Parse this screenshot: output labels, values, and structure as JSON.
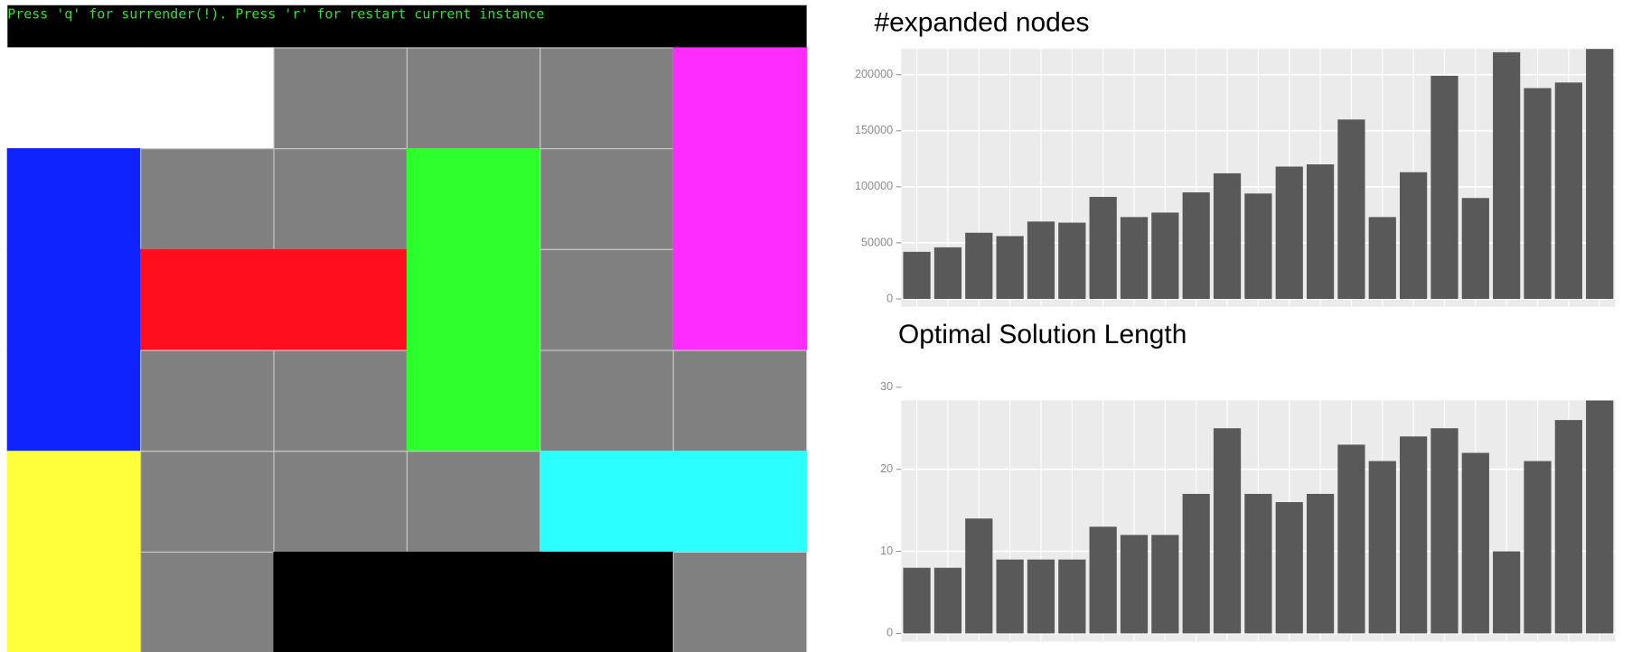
{
  "game": {
    "instruction": "Press 'q' for surrender(!). Press 'r' for restart current instance"
  },
  "chart_data": [
    {
      "type": "bar",
      "title": "#expanded nodes",
      "categories": [
        null,
        null,
        null,
        null,
        null,
        null,
        null,
        null,
        null,
        null,
        null,
        null,
        null,
        null,
        null,
        null,
        null,
        null,
        null,
        null,
        null,
        null,
        null
      ],
      "values": [
        42000,
        46000,
        59000,
        56000,
        69000,
        68000,
        91000,
        73000,
        77000,
        95000,
        112000,
        94000,
        118000,
        120000,
        160000,
        73000,
        113000,
        199000,
        90000,
        220000,
        188000,
        193000,
        223000
      ],
      "color": "#595959",
      "ylim": [
        -7000,
        223000
      ],
      "yticks": [
        0,
        50000,
        100000,
        150000,
        200000
      ],
      "grid": true
    },
    {
      "type": "bar",
      "title": "Optimal Solution Length",
      "categories": [
        null,
        null,
        null,
        null,
        null,
        null,
        null,
        null,
        null,
        null,
        null,
        null,
        null,
        null,
        null,
        null,
        null,
        null,
        null,
        null,
        null,
        null,
        null
      ],
      "values": [
        8,
        8,
        14,
        9,
        9,
        9,
        13,
        12,
        12,
        17,
        25,
        17,
        16,
        17,
        23,
        21,
        24,
        25,
        22,
        10,
        21,
        26,
        28.4
      ],
      "color": "#595959",
      "ylim": [
        -1,
        28.4
      ],
      "yticks": [
        0,
        10,
        20,
        30
      ],
      "grid": true
    }
  ]
}
